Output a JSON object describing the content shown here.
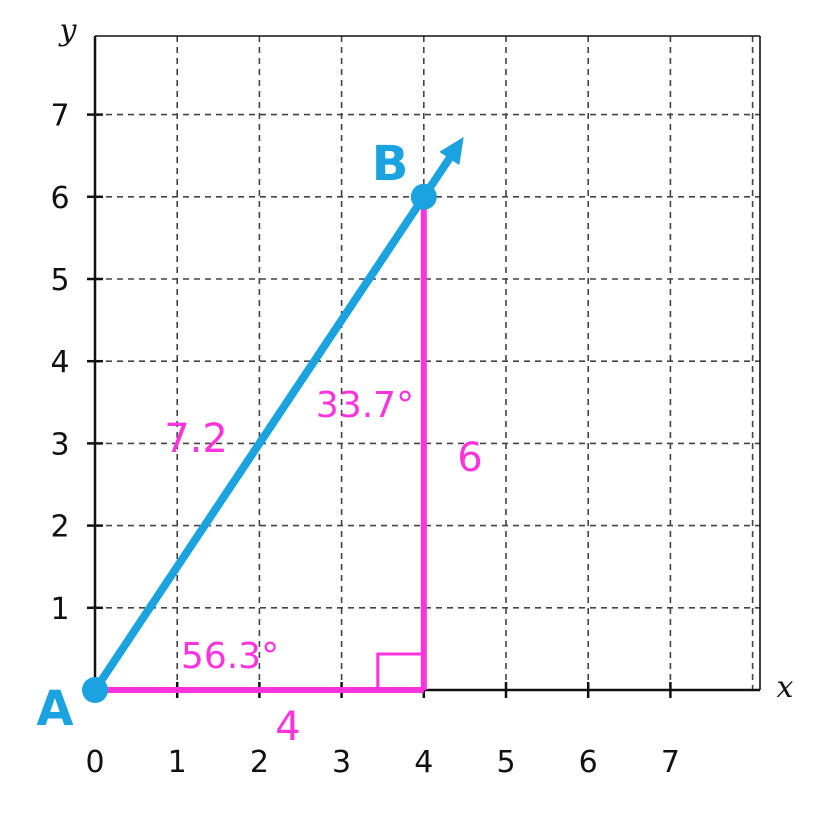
{
  "axes": {
    "x_label": "x",
    "y_label": "y",
    "x_ticks": [
      "0",
      "1",
      "2",
      "3",
      "4",
      "5",
      "6",
      "7"
    ],
    "y_ticks": [
      "1",
      "2",
      "3",
      "4",
      "5",
      "6",
      "7"
    ],
    "x_range": [
      0,
      8
    ],
    "y_range": [
      0,
      8
    ],
    "grid": "dashed"
  },
  "points": {
    "A": {
      "label": "A",
      "x": 0,
      "y": 0
    },
    "B": {
      "label": "B",
      "x": 4,
      "y": 6
    }
  },
  "measurements": {
    "hypotenuse": "7.2",
    "vertical_leg": "6",
    "horizontal_leg": "4",
    "angle_at_A": "56.3°",
    "angle_at_B": "33.7°"
  },
  "colors": {
    "segment": "#1aa3e0",
    "triangle": "#ff33dd",
    "grid": "#444444",
    "axis": "#111111"
  }
}
